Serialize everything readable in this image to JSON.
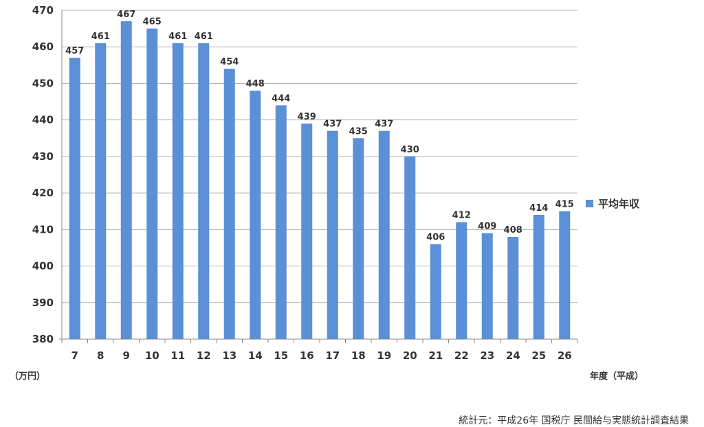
{
  "chart_data": {
    "type": "bar",
    "categories": [
      "7",
      "8",
      "9",
      "10",
      "11",
      "12",
      "13",
      "14",
      "15",
      "16",
      "17",
      "18",
      "19",
      "20",
      "21",
      "22",
      "23",
      "24",
      "25",
      "26"
    ],
    "series": [
      {
        "name": "平均年収",
        "values": [
          457,
          461,
          467,
          465,
          461,
          461,
          454,
          448,
          444,
          439,
          437,
          435,
          437,
          430,
          406,
          412,
          409,
          408,
          414,
          415
        ],
        "color": "#5b8fd6"
      }
    ],
    "data_labels": [
      "457",
      "461",
      "467",
      "465",
      "461",
      "461",
      "454",
      "448",
      "444",
      "439",
      "437",
      "435",
      "437",
      "430",
      "406",
      "412",
      "409",
      "408",
      "414",
      "415"
    ],
    "ylim": [
      380,
      470
    ],
    "yticks": [
      380,
      390,
      400,
      410,
      420,
      430,
      440,
      450,
      460,
      470
    ],
    "ylabel": "（万円）",
    "xlabel": "年度（平成）",
    "grid": true,
    "legend_position": "right"
  },
  "source_note": "統計元：平成26年 国税庁 民間給与実態統計調査結果"
}
